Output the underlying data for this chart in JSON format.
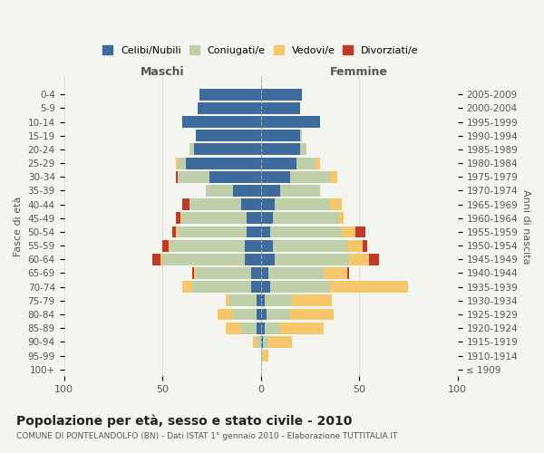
{
  "age_groups": [
    "100+",
    "95-99",
    "90-94",
    "85-89",
    "80-84",
    "75-79",
    "70-74",
    "65-69",
    "60-64",
    "55-59",
    "50-54",
    "45-49",
    "40-44",
    "35-39",
    "30-34",
    "25-29",
    "20-24",
    "15-19",
    "10-14",
    "5-9",
    "0-4"
  ],
  "birth_years": [
    "≤ 1909",
    "1910-1914",
    "1915-1919",
    "1920-1924",
    "1925-1929",
    "1930-1934",
    "1935-1939",
    "1940-1944",
    "1945-1949",
    "1950-1954",
    "1955-1959",
    "1960-1964",
    "1965-1969",
    "1970-1974",
    "1975-1979",
    "1980-1984",
    "1985-1989",
    "1990-1994",
    "1995-1999",
    "2000-2004",
    "2005-2009"
  ],
  "maschi": {
    "celibi": [
      0,
      0,
      0,
      2,
      2,
      2,
      5,
      5,
      8,
      8,
      7,
      7,
      10,
      14,
      26,
      38,
      34,
      33,
      40,
      32,
      31
    ],
    "coniugati": [
      0,
      0,
      2,
      8,
      12,
      14,
      30,
      28,
      42,
      38,
      35,
      33,
      26,
      14,
      16,
      4,
      2,
      0,
      0,
      0,
      0
    ],
    "vedovi": [
      0,
      0,
      2,
      8,
      8,
      2,
      5,
      1,
      1,
      1,
      1,
      1,
      0,
      0,
      0,
      1,
      0,
      0,
      0,
      0,
      0
    ],
    "divorziati": [
      0,
      0,
      0,
      0,
      0,
      0,
      0,
      1,
      4,
      3,
      2,
      2,
      4,
      0,
      1,
      0,
      0,
      0,
      0,
      0,
      0
    ]
  },
  "femmine": {
    "nubili": [
      0,
      0,
      1,
      2,
      3,
      2,
      5,
      4,
      7,
      6,
      5,
      6,
      7,
      10,
      15,
      18,
      20,
      20,
      30,
      20,
      21
    ],
    "coniugate": [
      0,
      1,
      3,
      8,
      12,
      14,
      30,
      28,
      38,
      38,
      36,
      34,
      28,
      20,
      20,
      10,
      3,
      1,
      0,
      0,
      0
    ],
    "vedove": [
      0,
      3,
      12,
      22,
      22,
      20,
      40,
      12,
      10,
      8,
      7,
      2,
      6,
      0,
      4,
      2,
      0,
      0,
      0,
      0,
      0
    ],
    "divorziate": [
      0,
      0,
      0,
      0,
      0,
      0,
      0,
      1,
      5,
      2,
      5,
      0,
      0,
      0,
      0,
      0,
      0,
      0,
      0,
      0,
      0
    ]
  },
  "colors": {
    "celibi": "#3d6b9e",
    "coniugati": "#bfcfaa",
    "vedovi": "#f5c76a",
    "divorziati": "#c0392b"
  },
  "xlim": 100,
  "title": "Popolazione per età, sesso e stato civile - 2010",
  "subtitle": "COMUNE DI PONTELANDOLFO (BN) - Dati ISTAT 1° gennaio 2010 - Elaborazione TUTTITALIA.IT",
  "ylabel_left": "Fasce di età",
  "ylabel_right": "Anni di nascita",
  "xlabel_maschi": "Maschi",
  "xlabel_femmine": "Femmine",
  "bg_color": "#f5f5f0",
  "grid_color": "#dddddd"
}
